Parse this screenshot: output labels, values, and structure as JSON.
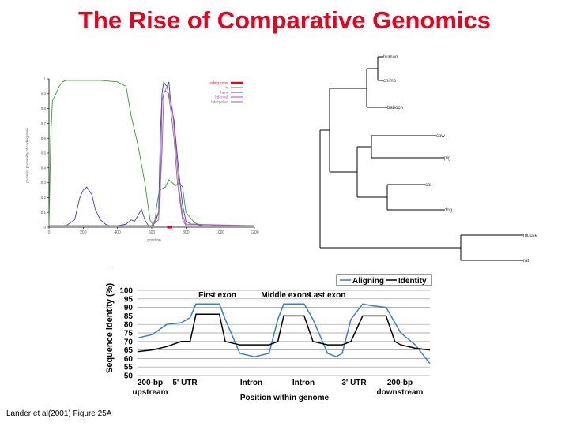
{
  "slide": {
    "title": "The Rise of Comparative Genomics",
    "caption": "Lander et al(2001) Figure 25A"
  },
  "chart_data": [
    {
      "type": "line",
      "title": "",
      "xlabel": "position",
      "ylabel": "posterior probability of coding state",
      "xlim": [
        0,
        1200
      ],
      "ylim": [
        0,
        1
      ],
      "x_ticks": [
        "0",
        "200",
        "400",
        "600",
        "800",
        "1000",
        "1200"
      ],
      "y_ticks": [
        "0",
        "0.1",
        "0.2",
        "0.3",
        "0.4",
        "0.5",
        "0.6",
        "0.7",
        "0.8",
        "0.9",
        "1"
      ],
      "legend_position": "top-right",
      "annotations": [
        "coding exon marker at ~690-720"
      ],
      "series": [
        {
          "name": "coding exon",
          "color": "#e8001c",
          "x": [
            690,
            720
          ],
          "y": [
            0,
            0
          ]
        },
        {
          "name": "h",
          "color": "#2ca02c",
          "x": [
            0,
            10,
            20,
            40,
            60,
            80,
            100,
            200,
            300,
            400,
            450,
            480,
            520,
            560,
            590,
            610,
            620,
            630,
            640,
            650,
            660,
            680,
            700,
            720,
            740,
            760,
            780,
            800,
            850,
            900,
            950,
            1000,
            1050,
            1100,
            1150,
            1200
          ],
          "y": [
            0.01,
            0.6,
            0.85,
            0.9,
            0.95,
            0.98,
            0.99,
            0.99,
            0.99,
            0.98,
            0.95,
            0.75,
            0.55,
            0.3,
            0.05,
            0.01,
            0.05,
            0.15,
            0.22,
            0.25,
            0.26,
            0.27,
            0.32,
            0.3,
            0.28,
            0.3,
            0.27,
            0.1,
            0.03,
            0.01,
            0.01,
            0.01,
            0.01,
            0.01,
            0.01,
            0.01
          ]
        },
        {
          "name": "hdm",
          "color": "#3b3bd1",
          "x": [
            0,
            100,
            150,
            180,
            200,
            220,
            250,
            270,
            300,
            330,
            350,
            400,
            450,
            480,
            500,
            520,
            540,
            560,
            580,
            600,
            620,
            640,
            650,
            660,
            670,
            680,
            690,
            700,
            710,
            720,
            730,
            740,
            760,
            780,
            800,
            830,
            860,
            900,
            1000,
            1200
          ],
          "y": [
            0.01,
            0.01,
            0.05,
            0.2,
            0.25,
            0.27,
            0.22,
            0.12,
            0.05,
            0.02,
            0.01,
            0.01,
            0.02,
            0.05,
            0.04,
            0.08,
            0.12,
            0.05,
            0.01,
            0.01,
            0.03,
            0.1,
            0.6,
            0.9,
            0.98,
            0.96,
            0.95,
            0.98,
            0.85,
            0.78,
            0.72,
            0.6,
            0.35,
            0.15,
            0.04,
            0.02,
            0.02,
            0.01,
            0.01,
            0.01
          ]
        },
        {
          "name": "hdecoul",
          "color": "#c040c0",
          "x": [
            0,
            600,
            620,
            640,
            650,
            660,
            670,
            680,
            700,
            720,
            740,
            760,
            780,
            800,
            1200
          ],
          "y": [
            0.01,
            0.01,
            0.05,
            0.1,
            0.2,
            0.85,
            0.9,
            0.92,
            0.9,
            0.8,
            0.55,
            0.25,
            0.08,
            0.02,
            0.01
          ]
        },
        {
          "name": "hdecpollar",
          "color": "#7a7a7a",
          "x": [
            0,
            600,
            640,
            660,
            670,
            690,
            710,
            730,
            750,
            780,
            800,
            1200
          ],
          "y": [
            0.01,
            0.01,
            0.05,
            0.5,
            0.9,
            0.95,
            0.8,
            0.6,
            0.3,
            0.05,
            0.01,
            0.01
          ]
        }
      ]
    },
    {
      "type": "tree",
      "leaves": [
        "human",
        "chimp",
        "baboon",
        "cow",
        "pig",
        "cat",
        "dog",
        "mouse",
        "rat"
      ]
    },
    {
      "type": "line",
      "title": "",
      "ylabel": "Sequence identity (%)",
      "xlabel": "Position within genome",
      "ylim": [
        50,
        100
      ],
      "y_ticks": [
        "50",
        "55",
        "60",
        "65",
        "70",
        "75",
        "80",
        "85",
        "90",
        "95",
        "100"
      ],
      "legend_position": "top-right",
      "segment_labels_top": [
        "First exon",
        "Middle exons",
        "Last exon"
      ],
      "segment_labels_bottom": [
        "200-bp upstream",
        "5' UTR",
        "Intron",
        "Intron",
        "3' UTR",
        "200-bp downstream"
      ],
      "series": [
        {
          "name": "Aligning",
          "color": "#3a7fc9",
          "x": [
            0,
            5,
            10,
            15,
            18,
            20,
            25,
            28,
            30,
            35,
            40,
            45,
            48,
            50,
            53,
            57,
            60,
            65,
            68,
            70,
            73,
            77,
            80,
            85,
            88,
            90,
            95,
            100
          ],
          "y": [
            72,
            74,
            80,
            81,
            84,
            92,
            92,
            92,
            83,
            63,
            61,
            63,
            83,
            92,
            92,
            92,
            83,
            63,
            61,
            63,
            83,
            92,
            91,
            90,
            81,
            75,
            68,
            57
          ]
        },
        {
          "name": "Identity",
          "color": "#000000",
          "x": [
            0,
            5,
            10,
            15,
            18,
            20,
            25,
            28,
            30,
            35,
            40,
            45,
            48,
            50,
            53,
            57,
            60,
            65,
            68,
            70,
            73,
            77,
            80,
            85,
            88,
            90,
            95,
            100
          ],
          "y": [
            64,
            65,
            67,
            70,
            70,
            86,
            86,
            86,
            70,
            68,
            68,
            68,
            70,
            85,
            85,
            85,
            70,
            68,
            68,
            68,
            70,
            85,
            85,
            85,
            70,
            68,
            66,
            65
          ]
        }
      ]
    }
  ]
}
